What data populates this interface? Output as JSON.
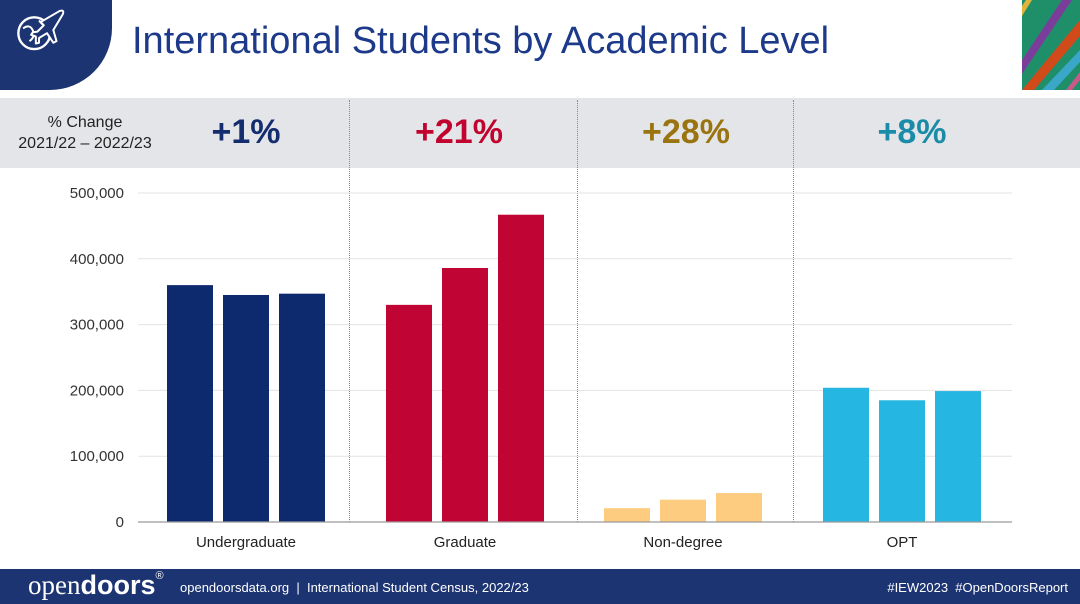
{
  "header": {
    "title": "International Students by Academic Level"
  },
  "change_band": {
    "label_line1": "% Change",
    "label_line2": "2021/22 – 2022/23",
    "items": [
      {
        "category": "Undergraduate",
        "value": "+1%",
        "color": "#142d6f"
      },
      {
        "category": "Graduate",
        "value": "+21%",
        "color": "#c0042f"
      },
      {
        "category": "Non-degree",
        "value": "+28%",
        "color": "#9a7410"
      },
      {
        "category": "OPT",
        "value": "+8%",
        "color": "#1b8ca8"
      }
    ]
  },
  "chart_data": {
    "type": "bar",
    "title": "International Students by Academic Level",
    "categories": [
      "Undergraduate",
      "Graduate",
      "Non-degree",
      "OPT"
    ],
    "bars_per_category": 3,
    "values": [
      [
        360000,
        345000,
        347000
      ],
      [
        330000,
        386000,
        467000
      ],
      [
        21000,
        34000,
        44000
      ],
      [
        204000,
        185000,
        199000
      ]
    ],
    "colors": [
      "#0e2a6e",
      "#c00535",
      "#fdcc80",
      "#25b6e1"
    ],
    "ylim": [
      0,
      500000
    ],
    "yticks": [
      0,
      100000,
      200000,
      300000,
      400000,
      500000
    ],
    "ytick_labels": [
      "0",
      "100,000",
      "200,000",
      "300,000",
      "400,000",
      "500,000"
    ],
    "xlabel": "",
    "ylabel": "",
    "grid": true
  },
  "footer": {
    "brand_part1": "open",
    "brand_part2": "doors",
    "brand_mark": "®",
    "site_text": "opendoorsdata.org  |  International Student Census, 2022/23",
    "hashtags": "#IEW2023  #OpenDoorsReport"
  },
  "colors": {
    "navy": "#1d3473",
    "band": "#e4e5e8",
    "title": "#1d3a8a"
  }
}
